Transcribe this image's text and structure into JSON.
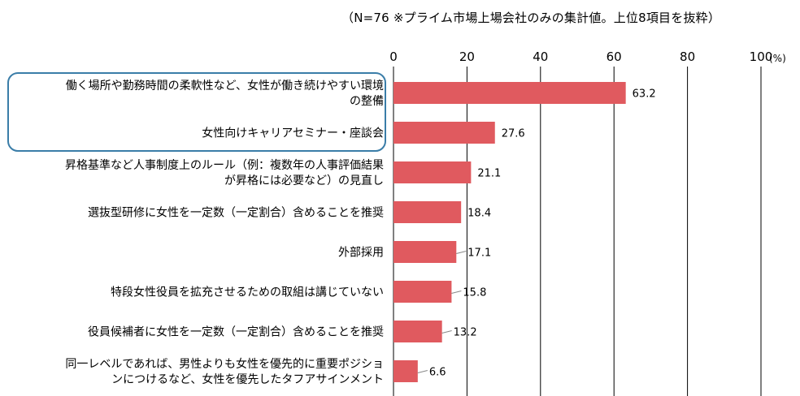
{
  "note": "（N=76 ※プライム市場上場会社のみの集計値。上位8項目を抜粋）",
  "chart_data": {
    "type": "bar",
    "orientation": "horizontal",
    "unit": "(%)",
    "xlim": [
      0,
      100
    ],
    "ticks": [
      0,
      20,
      40,
      60,
      80,
      100
    ],
    "grid": true,
    "bar_color": "#e05a5f",
    "highlight_color": "#3a7da8",
    "highlighted_categories": [
      0,
      1
    ],
    "categories": [
      [
        "働く場所や勤務時間の柔軟性など、女性が働き続けやすい環境",
        "の整備"
      ],
      [
        "女性向けキャリアセミナー・座談会"
      ],
      [
        "昇格基準など人事制度上のルール（例：複数年の人事評価結果",
        "が昇格には必要など）の見直し"
      ],
      [
        "選抜型研修に女性を一定数（一定割合）含めることを推奨"
      ],
      [
        "外部採用"
      ],
      [
        "特段女性役員を拡充させるための取組は講じていない"
      ],
      [
        "役員候補者に女性を一定数（一定割合）含めることを推奨"
      ],
      [
        "同一レベルであれば、男性よりも女性を優先的に重要ポジショ",
        "ンにつけるなど、女性を優先したタフアサインメント"
      ]
    ],
    "values": [
      63.2,
      27.6,
      21.1,
      18.4,
      17.1,
      15.8,
      13.2,
      6.6
    ],
    "value_labels": [
      "63.2",
      "27.6",
      "21.1",
      "18.4",
      "17.1",
      "15.8",
      "13.2",
      "6.6"
    ]
  }
}
